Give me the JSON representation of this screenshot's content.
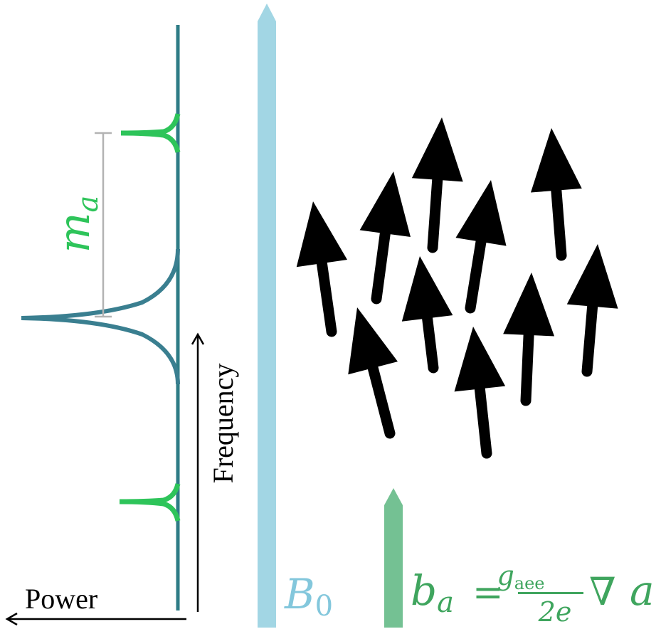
{
  "labels": {
    "power": "Power",
    "frequency": "Frequency",
    "mass_symbol": "m",
    "mass_subscript": "a",
    "b0_symbol": "B",
    "b0_subscript": "0",
    "ba_lhs": "b",
    "ba_lhs_sub": "a",
    "ba_equals": "=",
    "ba_num": "g",
    "ba_num_sub": "aee",
    "ba_den": "2e",
    "ba_grad": "∇",
    "ba_var": "a"
  },
  "colors": {
    "spectrum_line": "#2e7c86",
    "spectrum_peak": "#3a7f90",
    "sideband": "#2ec45a",
    "gap_marker": "#b3b3b3",
    "b0_field": "#a2d6e4",
    "ba_field": "#74c193",
    "ba_text": "#3fa55e",
    "b0_text": "#83c7dc",
    "arrows": "#000000"
  },
  "icons": {
    "spins": "spin-arrow-icon",
    "field_arrows": "field-arrow-icon"
  }
}
